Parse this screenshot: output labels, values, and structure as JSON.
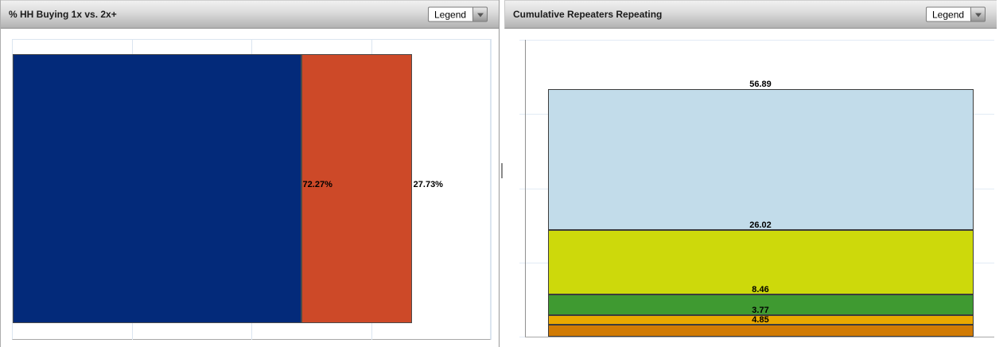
{
  "left_panel": {
    "title": "% HH Buying 1x vs. 2x+",
    "legend_button": {
      "label": "Legend"
    },
    "chart_data": {
      "type": "bar",
      "orientation": "horizontal",
      "stacked": true,
      "title": "% HH Buying 1x vs. 2x+",
      "xlim": [
        0,
        120
      ],
      "grid": true,
      "gridlines_x": [
        30,
        60,
        90,
        120
      ],
      "legend_position": "collapsed-dropdown",
      "series": [
        {
          "value": 72.27,
          "label": "72.27%",
          "color": "#032a7a"
        },
        {
          "value": 27.73,
          "label": "27.73%",
          "color": "#cd4928"
        }
      ]
    }
  },
  "right_panel": {
    "title": "Cumulative Repeaters Repeating",
    "legend_button": {
      "label": "Legend"
    },
    "chart_data": {
      "type": "bar",
      "orientation": "vertical",
      "stacked": true,
      "title": "Cumulative Repeaters Repeating",
      "ylim": [
        0,
        120
      ],
      "grid": true,
      "gridlines_y": [
        0,
        30,
        60,
        90,
        120
      ],
      "legend_position": "collapsed-dropdown",
      "series_top_to_bottom": [
        {
          "value": 56.89,
          "label": "56.89",
          "color": "#c2dcea"
        },
        {
          "value": 26.02,
          "label": "26.02",
          "color": "#cdd90b"
        },
        {
          "value": 8.46,
          "label": "8.46",
          "color": "#3f9a31"
        },
        {
          "value": 3.77,
          "label": "3.77",
          "color": "#eaa900"
        },
        {
          "value": 4.85,
          "label": "4.85",
          "color": "#d17b04"
        }
      ]
    }
  },
  "colors": {
    "gridline": "#dbe5f0",
    "axis_line": "#8f8f8f",
    "bar_border": "#3c3c3c",
    "header_gradient_top": "#f1f1f1",
    "header_gradient_bottom": "#b2b2b2"
  }
}
